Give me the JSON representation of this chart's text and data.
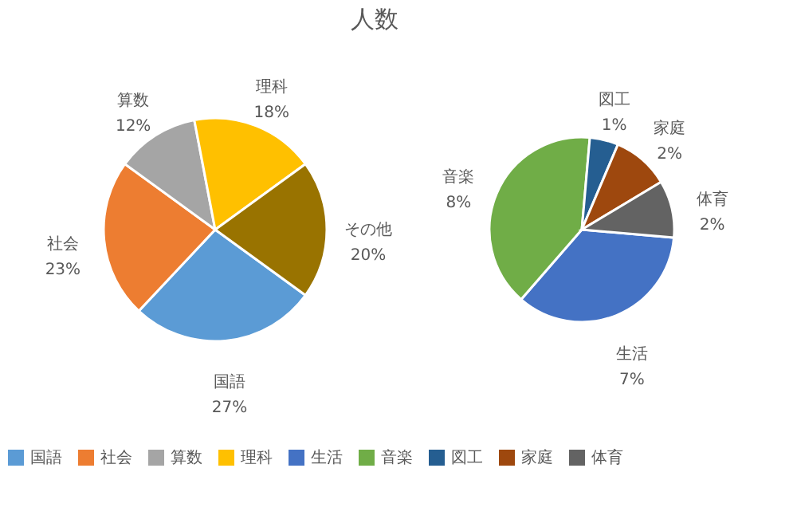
{
  "chart_data": [
    {
      "type": "pie",
      "title": "人数",
      "legend": "bottom",
      "categories": [
        "国語",
        "社会",
        "算数",
        "理科",
        "その他"
      ],
      "values": [
        27,
        23,
        12,
        18,
        20
      ],
      "value_labels": [
        "27%",
        "23%",
        "12%",
        "18%",
        "20%"
      ],
      "colors": [
        "#5b9bd5",
        "#ed7d31",
        "#a5a5a5",
        "#ffc000",
        "#997300"
      ]
    },
    {
      "type": "pie",
      "legend": "bottom",
      "categories": [
        "生活",
        "音楽",
        "図工",
        "家庭",
        "体育"
      ],
      "values": [
        7,
        8,
        1,
        2,
        2
      ],
      "value_labels": [
        "7%",
        "8%",
        "1%",
        "2%",
        "2%"
      ],
      "colors": [
        "#4472c4",
        "#70ad47",
        "#255e91",
        "#9e480e",
        "#636363"
      ]
    }
  ]
}
